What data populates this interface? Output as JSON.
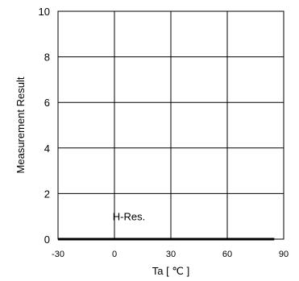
{
  "chart_data": {
    "type": "line",
    "title": "",
    "xlabel": "Ta [ ℃ ]",
    "ylabel": "Measurement Result",
    "xlim": [
      -30,
      90
    ],
    "ylim": [
      0,
      10
    ],
    "xticks": [
      -30,
      0,
      30,
      60,
      90
    ],
    "yticks": [
      0,
      2,
      4,
      6,
      8,
      10
    ],
    "grid": true,
    "legend": "none",
    "series": [
      {
        "x": [
          -30,
          85
        ],
        "y": [
          0,
          0
        ],
        "color": "#000000"
      }
    ],
    "annotations": [
      {
        "text": "H-Res.",
        "x": 0,
        "y": 1
      }
    ]
  }
}
